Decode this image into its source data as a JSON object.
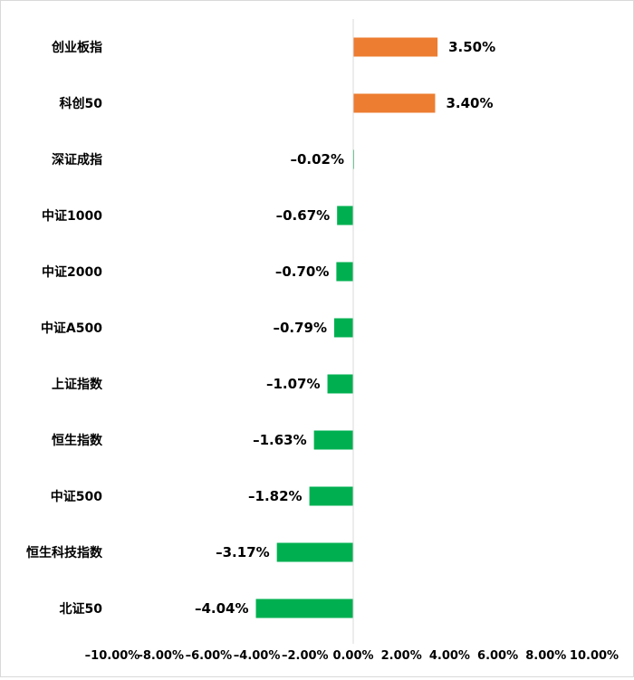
{
  "chart_data": {
    "type": "bar",
    "orientation": "horizontal",
    "title": "",
    "xlabel": "",
    "ylabel": "",
    "categories": [
      "创业板指",
      "科创50",
      "深证成指",
      "中证1000",
      "中证2000",
      "中证A500",
      "上证指数",
      "恒生指数",
      "中证500",
      "恒生科技指数",
      "北证50"
    ],
    "values": [
      3.5,
      3.4,
      -0.02,
      -0.67,
      -0.7,
      -0.79,
      -1.07,
      -1.63,
      -1.82,
      -3.17,
      -4.04
    ],
    "data_labels": [
      "3.50%",
      "3.40%",
      "–0.02%",
      "–0.67%",
      "–0.70%",
      "–0.79%",
      "–1.07%",
      "–1.63%",
      "–1.82%",
      "–3.17%",
      "–4.04%"
    ],
    "xlim": [
      -10,
      10
    ],
    "x_ticks": [
      -10,
      -8,
      -6,
      -4,
      -2,
      0,
      2,
      4,
      6,
      8,
      10
    ],
    "x_tick_labels": [
      "–10.00%",
      "–8.00%",
      "–6.00%",
      "–4.00%",
      "–2.00%",
      "0.00%",
      "2.00%",
      "4.00%",
      "6.00%",
      "8.00%",
      "10.00%"
    ],
    "grid": false,
    "legend": "none",
    "colors": {
      "positive": "#ED7D31",
      "negative": "#00B050",
      "axis": "#d9d9d9"
    }
  }
}
